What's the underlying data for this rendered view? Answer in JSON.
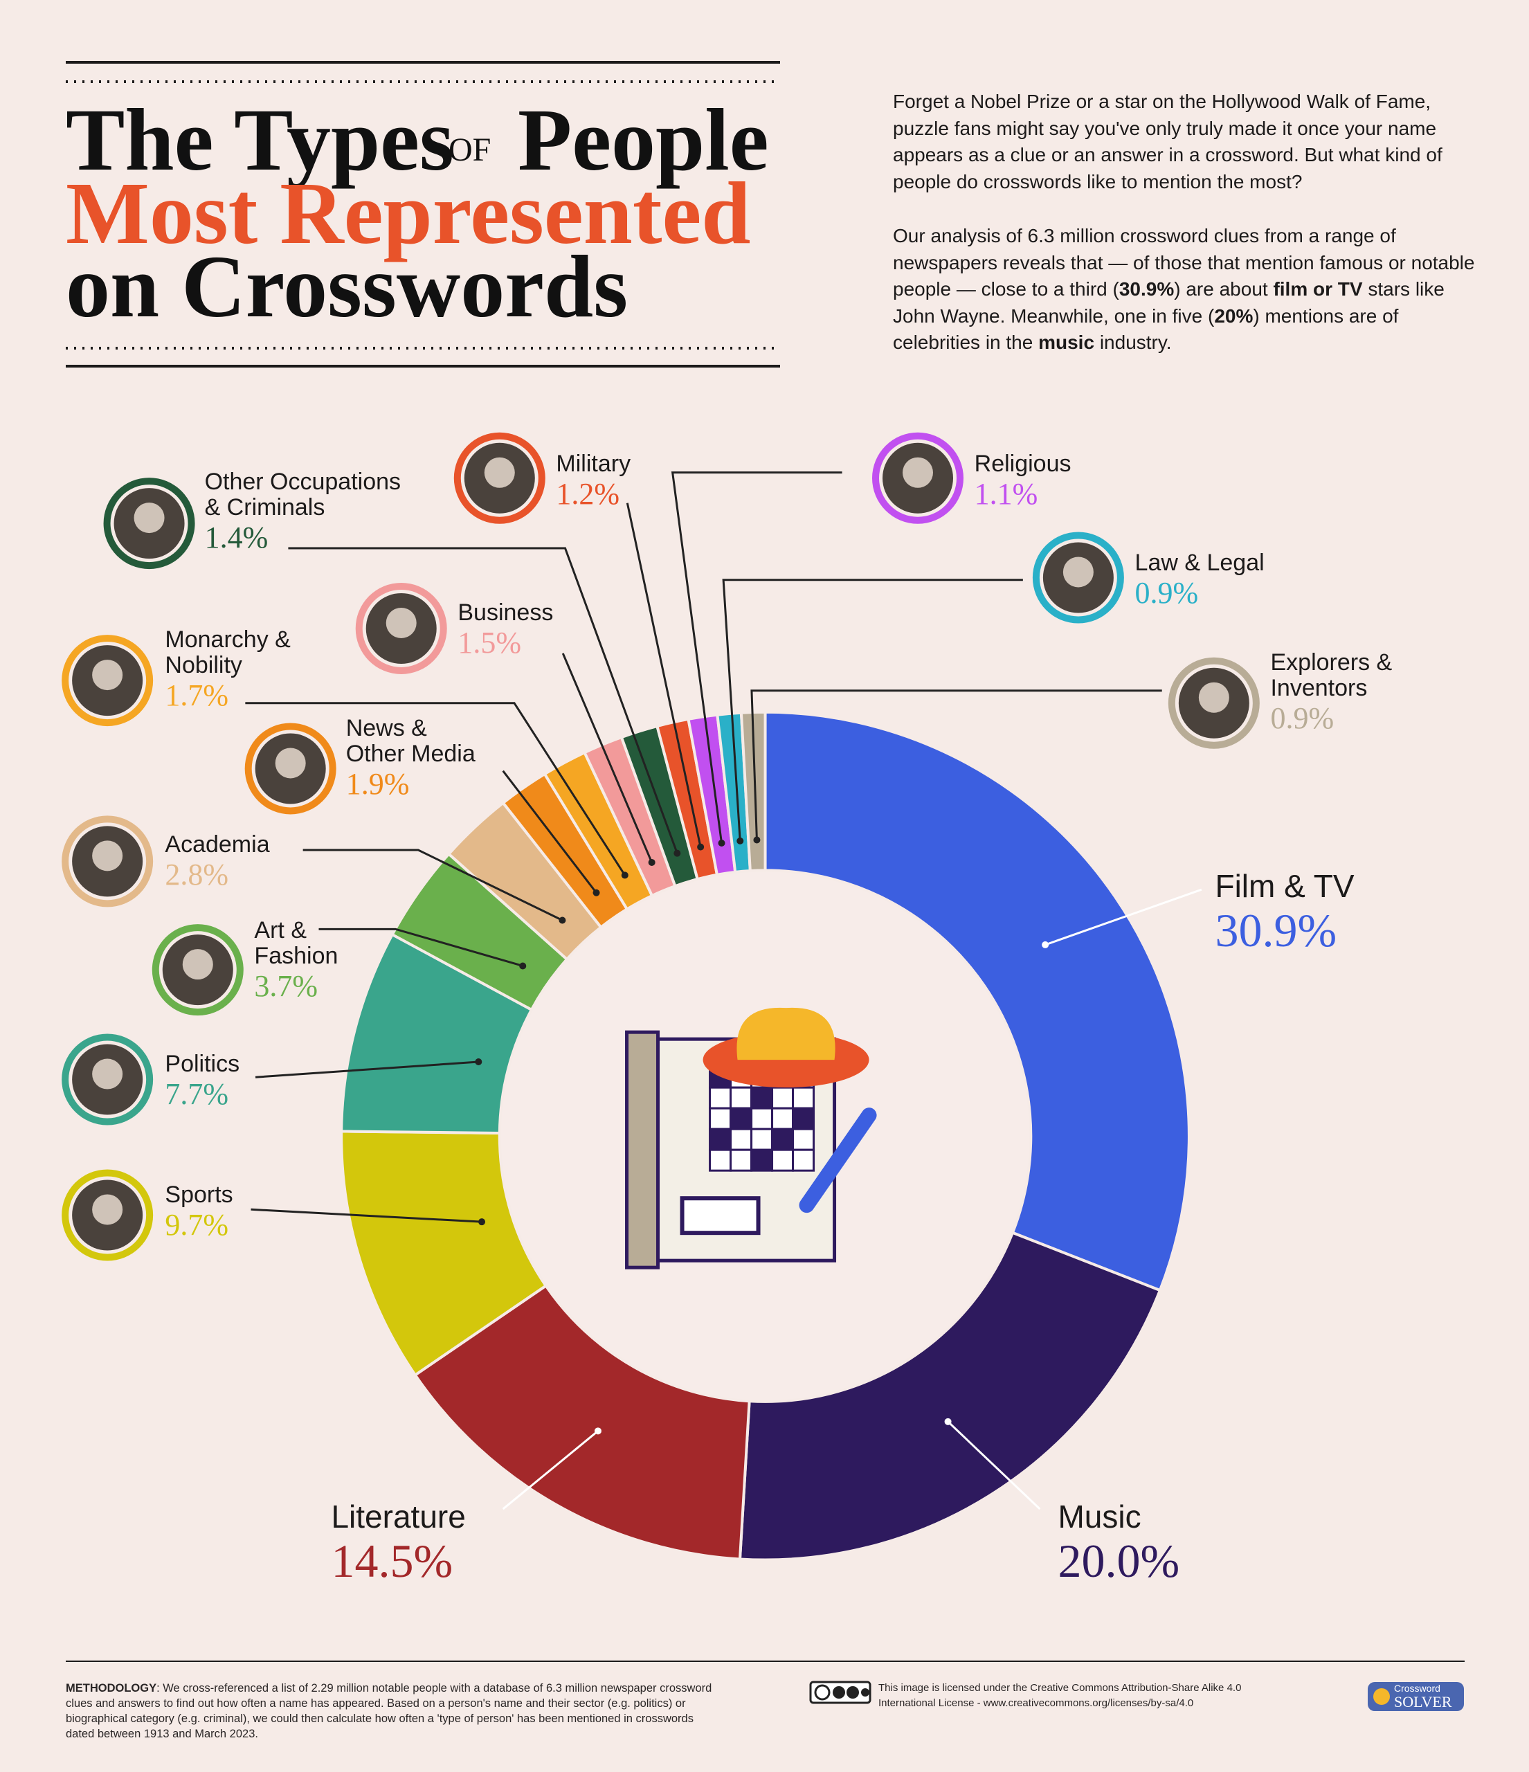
{
  "header": {
    "title": {
      "line1a": "The Types",
      "of": "OF",
      "line1b": "People",
      "line2": "Most Represented",
      "line3": "on Crosswords"
    }
  },
  "intro": {
    "p1": "Forget a Nobel Prize or a star on the Hollywood Walk of Fame, puzzle fans might say you've only truly made it once your name appears as a clue or an answer in a crossword. But what kind of people do crosswords like to mention the most?",
    "p2": [
      "Our analysis of 6.3 million crossword clues from a range of newspapers reveals that — of those that mention famous or notable people — close to a third (",
      "30.9%",
      ") are about ",
      "film or TV",
      " stars like John Wayne. Meanwhile, one in five (",
      "20%",
      ") mentions are of celebrities in the ",
      "music",
      " industry."
    ]
  },
  "chart_data": {
    "type": "donut",
    "categories": [
      "Film & TV",
      "Music",
      "Literature",
      "Sports",
      "Politics",
      "Art &\nFashion",
      "Academia",
      "News &\nOther Media",
      "Monarchy &\nNobility",
      "Business",
      "Other Occupations\n& Criminals",
      "Military",
      "Religious",
      "Law & Legal",
      "Explorers &\nInventors"
    ],
    "values": [
      30.9,
      20.0,
      14.5,
      9.7,
      7.7,
      3.7,
      2.8,
      1.9,
      1.7,
      1.5,
      1.4,
      1.2,
      1.1,
      0.9,
      0.9
    ],
    "value_labels": [
      "30.9%",
      "20.0%",
      "14.5%",
      "9.7%",
      "7.7%",
      "3.7%",
      "2.8%",
      "1.9%",
      "1.7%",
      "1.5%",
      "1.4%",
      "1.2%",
      "1.1%",
      "0.9%",
      "0.9%"
    ],
    "colors": [
      "#3c5fe0",
      "#2e1a5e",
      "#a3282a",
      "#d3c70c",
      "#3aa58c",
      "#6ab04c",
      "#e3b98a",
      "#f08a1a",
      "#f5a623",
      "#f29a9a",
      "#245a3a",
      "#e8532a",
      "#c150f0",
      "#2ab0c8",
      "#b8ac96"
    ]
  },
  "footer": {
    "methodology_label": "METHODOLOGY",
    "methodology": ": We cross-referenced a list of 2.29 million notable people with a database of 6.3 million newspaper crossword clues and answers to find out how often a name has appeared. Based on a person's name and their sector (e.g. politics) or biographical category (e.g. criminal), we could then calculate how often a 'type of person' has been mentioned in crosswords dated between 1913 and March 2023.",
    "license": "This image is licensed under the Creative Commons Attribution-Share Alike 4.0\nInternational License - www.creativecommons.org/licenses/by-sa/4.0",
    "logo": [
      "Crossword",
      "SOLVER"
    ]
  }
}
